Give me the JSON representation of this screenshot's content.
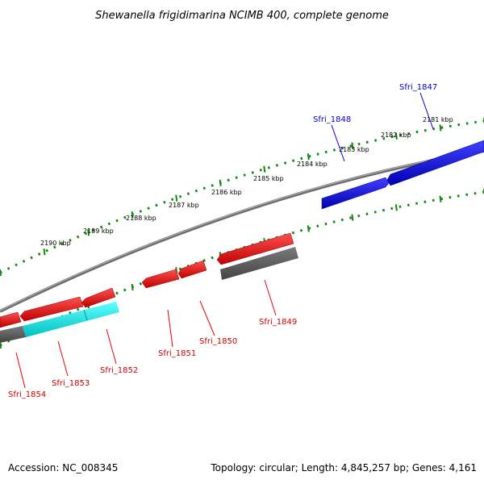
{
  "title": "Shewanella frigidimarina NCIMB 400, complete genome",
  "footer": {
    "accession": "Accession: NC_008345",
    "topology": "Topology: circular; Length: 4,845,257 bp; Genes: 4,161"
  },
  "scale_labels": [
    "2181 kbp",
    "2182 kbp",
    "2183 kbp",
    "2184 kbp",
    "2185 kbp",
    "2186 kbp",
    "2187 kbp",
    "2188 kbp",
    "2189 kbp",
    "2190 kbp"
  ],
  "genes": [
    {
      "id": "Sfri_1847",
      "strand": "plus",
      "color": "#0000dd"
    },
    {
      "id": "Sfri_1848",
      "strand": "plus",
      "color": "#0000dd"
    },
    {
      "id": "Sfri_1849",
      "strand": "minus",
      "color": "#ee0000"
    },
    {
      "id": "Sfri_1850",
      "strand": "minus",
      "color": "#ee0000"
    },
    {
      "id": "Sfri_1851",
      "strand": "minus",
      "color": "#ee0000"
    },
    {
      "id": "Sfri_1852",
      "strand": "minus",
      "color": "#ee0000"
    },
    {
      "id": "Sfri_1853",
      "strand": "minus",
      "color": "#ee0000"
    },
    {
      "id": "Sfri_1854",
      "strand": "minus",
      "color": "#ee0000"
    }
  ],
  "colors": {
    "plus_strand": "#0000dd",
    "minus_strand": "#ee0000",
    "cds_grey": "#555555",
    "cds_cyan": "#00e0e0",
    "backbone": "#808080",
    "ticks": "#118811"
  }
}
